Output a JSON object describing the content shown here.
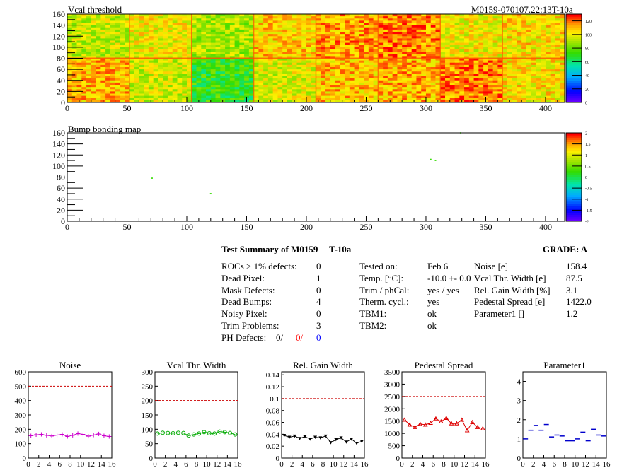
{
  "header": {
    "title_left": "Vcal threshold",
    "title_right": "M0159-070107.22:13T-10a"
  },
  "maps": {
    "vcal": {
      "title": "Vcal threshold",
      "x_ticks": [
        "0",
        "50",
        "100",
        "150",
        "200",
        "250",
        "300",
        "350",
        "400"
      ],
      "y_ticks": [
        "0",
        "20",
        "40",
        "60",
        "80",
        "100",
        "120",
        "140",
        "160"
      ],
      "xlim": [
        0,
        416
      ],
      "ylim": [
        0,
        160
      ],
      "z_ticks": [
        "0",
        "20",
        "40",
        "60",
        "80",
        "100",
        "120"
      ],
      "zlim": [
        0,
        130
      ],
      "roc_levels": [
        [
          95,
          102,
          90,
          108,
          115,
          118,
          102,
          105
        ],
        [
          112,
          96,
          72,
          98,
          110,
          112,
          118,
          104
        ]
      ]
    },
    "bump": {
      "title": "Bump bonding map",
      "x_ticks": [
        "0",
        "50",
        "100",
        "150",
        "200",
        "250",
        "300",
        "350",
        "400"
      ],
      "y_ticks": [
        "0",
        "20",
        "40",
        "60",
        "80",
        "100",
        "120",
        "140",
        "160"
      ],
      "xlim": [
        0,
        416
      ],
      "ylim": [
        0,
        160
      ],
      "z_ticks": [
        "2",
        "1.5",
        "1",
        "0.5",
        "0",
        "-0.5",
        "-1",
        "-1.5",
        "-2"
      ],
      "zlim": [
        -2,
        2
      ],
      "dots": [
        {
          "x": 71,
          "y": 78
        },
        {
          "x": 120,
          "y": 50
        },
        {
          "x": 304,
          "y": 112
        },
        {
          "x": 308,
          "y": 110
        },
        {
          "x": 329,
          "y": 160
        }
      ]
    }
  },
  "summary": {
    "title": "Test Summary of M0159",
    "temp_tag": "T-10a",
    "grade": "GRADE:  A",
    "col1": [
      {
        "label": "ROCs > 1% defects:",
        "value": "0"
      },
      {
        "label": "Dead Pixel:",
        "value": "1"
      },
      {
        "label": "Mask Defects:",
        "value": "0"
      },
      {
        "label": "Dead Bumps:",
        "value": "4"
      },
      {
        "label": "Noisy Pixel:",
        "value": "0"
      },
      {
        "label": "Trim Problems:",
        "value": "3"
      }
    ],
    "ph_defects": {
      "label": "PH Defects:",
      "v1": "0/",
      "v2": "0/",
      "v3": "0"
    },
    "col2": [
      {
        "label": "Tested on:",
        "value": "Feb 6"
      },
      {
        "label": "Temp. [°C]:",
        "value": "-10.0 +- 0.0"
      },
      {
        "label": "Trim / phCal:",
        "value": "yes / yes"
      },
      {
        "label": "Therm. cycl.:",
        "value": "yes"
      },
      {
        "label": "TBM1:",
        "value": "ok"
      },
      {
        "label": "TBM2:",
        "value": "ok"
      }
    ],
    "col3": [
      {
        "label": "Noise [e]",
        "value": "158.4"
      },
      {
        "label": "Vcal Thr. Width [e]",
        "value": "87.5"
      },
      {
        "label": "Rel. Gain Width [%]",
        "value": "3.1"
      },
      {
        "label": "Pedestal Spread [e]",
        "value": "1422.0"
      },
      {
        "label": "Parameter1 []",
        "value": "1.2"
      }
    ],
    "colors": {
      "ph2": "#ff0000",
      "ph3": "#0000ff"
    }
  },
  "chart_data": [
    {
      "type": "line",
      "title": "Noise",
      "x": [
        0,
        1,
        2,
        3,
        4,
        5,
        6,
        7,
        8,
        9,
        10,
        11,
        12,
        13,
        14,
        15
      ],
      "values": [
        155,
        162,
        165,
        158,
        153,
        160,
        165,
        150,
        158,
        170,
        165,
        152,
        160,
        168,
        155,
        150
      ],
      "ylim": [
        0,
        600
      ],
      "yticks": [
        "0",
        "100",
        "200",
        "300",
        "400",
        "500",
        "600"
      ],
      "xticks": [
        "0",
        "2",
        "4",
        "6",
        "8",
        "10",
        "12",
        "14",
        "16"
      ],
      "limit": 500,
      "color": "#cc00cc",
      "marker": "plus"
    },
    {
      "type": "line",
      "title": "Vcal Thr. Width",
      "x": [
        0,
        1,
        2,
        3,
        4,
        5,
        6,
        7,
        8,
        9,
        10,
        11,
        12,
        13,
        14,
        15
      ],
      "values": [
        85,
        88,
        87,
        86,
        88,
        87,
        78,
        82,
        85,
        90,
        86,
        85,
        92,
        90,
        87,
        82
      ],
      "ylim": [
        0,
        300
      ],
      "yticks": [
        "0",
        "50",
        "100",
        "150",
        "200",
        "250",
        "300"
      ],
      "xticks": [
        "0",
        "2",
        "4",
        "6",
        "8",
        "10",
        "12",
        "14",
        "16"
      ],
      "limit": 200,
      "color": "#00aa00",
      "marker": "circle"
    },
    {
      "type": "line",
      "title": "Rel. Gain Width",
      "x": [
        0,
        1,
        2,
        3,
        4,
        5,
        6,
        7,
        8,
        9,
        10,
        11,
        12,
        13,
        14,
        15
      ],
      "values": [
        0.038,
        0.035,
        0.037,
        0.033,
        0.036,
        0.032,
        0.035,
        0.034,
        0.037,
        0.026,
        0.031,
        0.034,
        0.027,
        0.032,
        0.025,
        0.028
      ],
      "ylim": [
        0,
        0.145
      ],
      "yticks": [
        "0",
        "0.02",
        "0.04",
        "0.06",
        "0.08",
        "0.1",
        "0.12",
        "0.14"
      ],
      "ytickvals": [
        0,
        0.02,
        0.04,
        0.06,
        0.08,
        0.1,
        0.12,
        0.14
      ],
      "xticks": [
        "0",
        "2",
        "4",
        "6",
        "8",
        "10",
        "12",
        "14",
        "16"
      ],
      "limit": 0.1,
      "color": "#000000",
      "marker": "tri-down"
    },
    {
      "type": "line",
      "title": "Pedestal Spread",
      "x": [
        0,
        1,
        2,
        3,
        4,
        5,
        6,
        7,
        8,
        9,
        10,
        11,
        12,
        13,
        14,
        15
      ],
      "values": [
        1550,
        1350,
        1250,
        1380,
        1350,
        1420,
        1600,
        1480,
        1620,
        1400,
        1400,
        1550,
        1120,
        1450,
        1250,
        1200
      ],
      "ylim": [
        0,
        3500
      ],
      "yticks": [
        "0",
        "500",
        "1000",
        "1500",
        "2000",
        "2500",
        "3000",
        "3500"
      ],
      "xticks": [
        "0",
        "2",
        "4",
        "6",
        "8",
        "10",
        "12",
        "14",
        "16"
      ],
      "limit": 2500,
      "color": "#dd0000",
      "marker": "tri-up"
    },
    {
      "type": "scatter",
      "title": "Parameter1",
      "x": [
        0,
        1,
        2,
        3,
        4,
        5,
        6,
        7,
        8,
        9,
        10,
        11,
        12,
        13,
        14,
        15
      ],
      "values": [
        1.0,
        1.45,
        1.7,
        1.45,
        1.75,
        1.1,
        1.2,
        1.15,
        0.9,
        0.9,
        1.0,
        1.35,
        0.9,
        1.5,
        1.2,
        1.15
      ],
      "ylim": [
        0,
        4.5
      ],
      "yticks": [
        "0",
        "1",
        "2",
        "3",
        "4"
      ],
      "xticks": [
        "0",
        "2",
        "4",
        "6",
        "8",
        "10",
        "12",
        "14",
        "16"
      ],
      "color": "#0000cc",
      "marker": "hbar"
    }
  ]
}
